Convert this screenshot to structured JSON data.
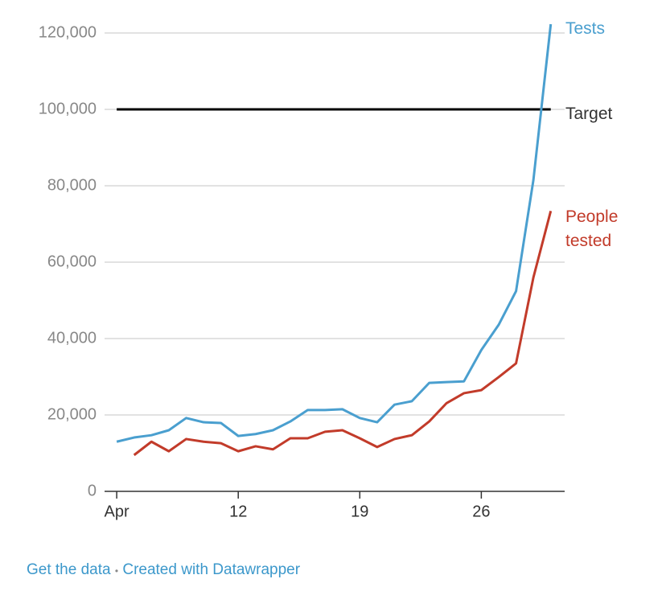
{
  "chart_data": {
    "type": "line",
    "x": [
      5,
      6,
      7,
      8,
      9,
      10,
      11,
      12,
      13,
      14,
      15,
      16,
      17,
      18,
      19,
      20,
      21,
      22,
      23,
      24,
      25,
      26,
      27,
      28,
      29,
      30
    ],
    "series": [
      {
        "name": "Tests",
        "color": "#4a9fcf",
        "values": [
          13000,
          14100,
          14700,
          16000,
          19200,
          18100,
          17900,
          14500,
          15000,
          16000,
          18300,
          21300,
          21300,
          21500,
          19200,
          18100,
          22700,
          23600,
          28400,
          28600,
          28800,
          37000,
          43600,
          52400,
          81500,
          122300
        ]
      },
      {
        "name": "People tested",
        "color": "#c23b2a",
        "values": [
          null,
          9500,
          13000,
          10500,
          13700,
          13000,
          12600,
          10500,
          11800,
          11000,
          13900,
          13900,
          15600,
          16000,
          13900,
          11600,
          13700,
          14700,
          18300,
          23100,
          25700,
          26500,
          29900,
          33500,
          56000,
          73400
        ]
      }
    ],
    "target": {
      "name": "Target",
      "value": 100000,
      "color": "#000000"
    },
    "xlim": [
      4.3,
      30.8
    ],
    "xticks": [
      {
        "value": 5,
        "label": "Apr"
      },
      12,
      19,
      26
    ],
    "ylim": [
      0,
      120000
    ],
    "yticks": [
      0,
      {
        "value": 20000,
        "label": "20,000"
      },
      {
        "value": 40000,
        "label": "40,000"
      },
      {
        "value": 60000,
        "label": "60,000"
      },
      {
        "value": 80000,
        "label": "80,000"
      },
      {
        "value": 100000,
        "label": "100,000"
      },
      {
        "value": 120000,
        "label": "120,000"
      }
    ],
    "grid": true
  },
  "footer": {
    "links": [
      "Get the data",
      "Created with Datawrapper"
    ],
    "separator": "•"
  }
}
